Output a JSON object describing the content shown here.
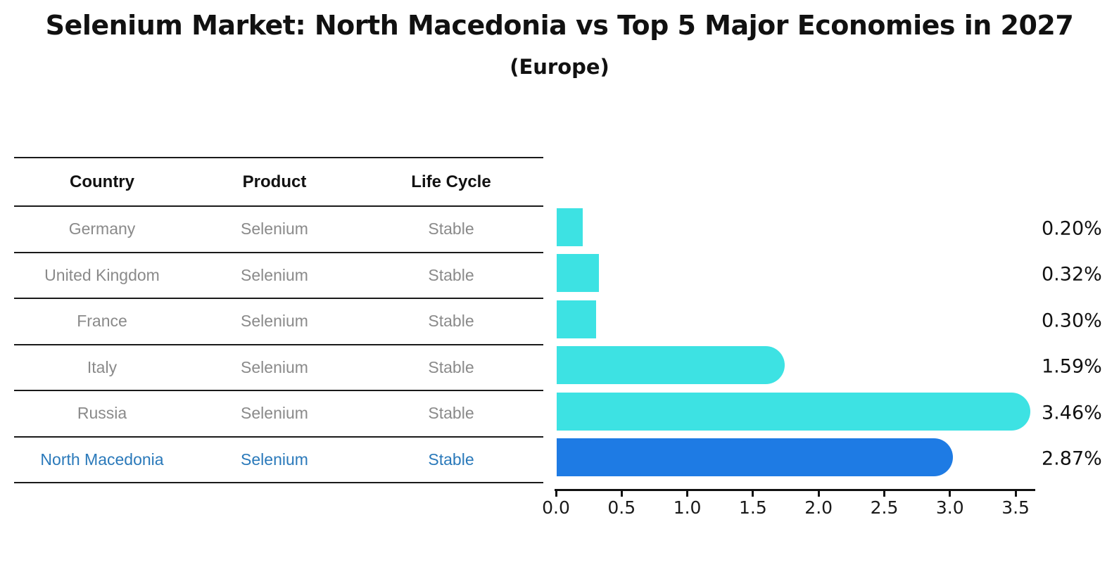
{
  "title": "Selenium Market: North Macedonia vs Top 5 Major Economies in 2027",
  "subtitle": "(Europe)",
  "table": {
    "headers": [
      "Country",
      "Product",
      "Life Cycle"
    ],
    "rows": [
      {
        "country": "Germany",
        "product": "Selenium",
        "life_cycle": "Stable",
        "highlight": false
      },
      {
        "country": "United Kingdom",
        "product": "Selenium",
        "life_cycle": "Stable",
        "highlight": false
      },
      {
        "country": "France",
        "product": "Selenium",
        "life_cycle": "Stable",
        "highlight": false
      },
      {
        "country": "Italy",
        "product": "Selenium",
        "life_cycle": "Stable",
        "highlight": false
      },
      {
        "country": "Russia",
        "product": "Selenium",
        "life_cycle": "Stable",
        "highlight": false
      },
      {
        "country": "North Macedonia",
        "product": "Selenium",
        "life_cycle": "Stable",
        "highlight": true
      }
    ]
  },
  "chart_data": {
    "type": "bar",
    "orientation": "horizontal",
    "categories": [
      "Germany",
      "United Kingdom",
      "France",
      "Italy",
      "Russia",
      "North Macedonia"
    ],
    "values": [
      0.2,
      0.32,
      0.3,
      1.59,
      3.46,
      2.87
    ],
    "value_labels": [
      "0.20%",
      "0.32%",
      "0.30%",
      "1.59%",
      "3.46%",
      "2.87%"
    ],
    "highlight_index": 5,
    "xlim": [
      0,
      3.5
    ],
    "xticks": [
      0.0,
      0.5,
      1.0,
      1.5,
      2.0,
      2.5,
      3.0,
      3.5
    ],
    "xtick_labels": [
      "0.0",
      "0.5",
      "1.0",
      "1.5",
      "2.0",
      "2.5",
      "3.0",
      "3.5"
    ],
    "grid": false,
    "legend": false,
    "colors": {
      "bar_default": "#3de2e3",
      "bar_highlight": "#1e7be4",
      "highlight_text": "#2a79ba",
      "axis": "#111111"
    }
  }
}
